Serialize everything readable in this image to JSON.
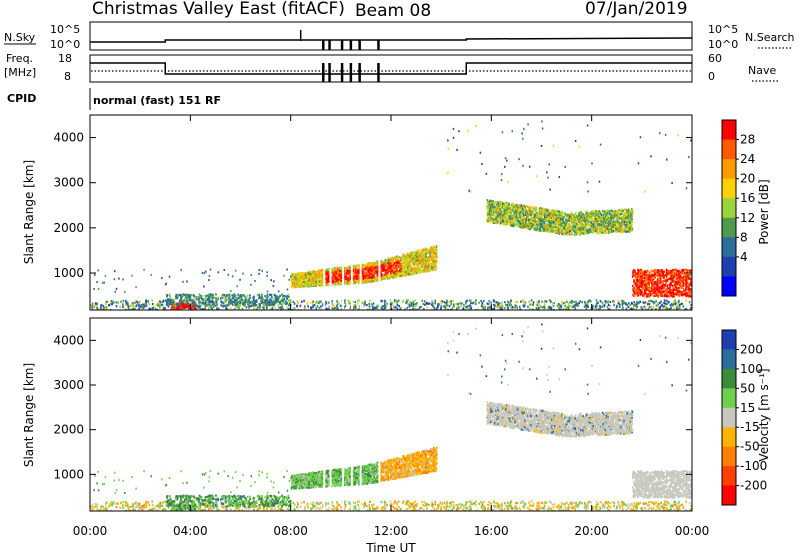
{
  "header": {
    "title": "Christmas Valley East (fitACF)",
    "beam": "Beam 08",
    "date": "07/Jan/2019"
  },
  "top_panels": {
    "nsky_label": "N.Sky",
    "nsearch_label": "N.Search",
    "nsky_ticks": [
      "10^5",
      "10^0"
    ],
    "nsearch_ticks": [
      "10^5",
      "10^0"
    ],
    "freq_label_1": "Freq.",
    "freq_label_2": "[MHz]",
    "freq_ticks": [
      "18",
      "8"
    ],
    "nave_label": "Nave",
    "nave_ticks": [
      "60",
      "0"
    ],
    "cpid_label": "CPID",
    "cpid_value": "normal (fast) 151 RF"
  },
  "power_colorbar": {
    "label": "Power [dB]",
    "ticks": [
      "28",
      "24",
      "20",
      "16",
      "12",
      "8",
      "4"
    ],
    "colors": [
      "#ff0000",
      "#ff5a00",
      "#ff9a00",
      "#ffd200",
      "#9bd43c",
      "#4e9a4e",
      "#2a6e9a",
      "#1f3fb0",
      "#0000ff"
    ]
  },
  "velocity_colorbar": {
    "label": "Velocity [m s⁻¹]",
    "ticks": [
      "200",
      "100",
      "50",
      "15",
      "-15",
      "-50",
      "-100",
      "-200"
    ],
    "colors": [
      "#1f3fb0",
      "#2a6e9a",
      "#3c8a3c",
      "#6ed04a",
      "#c8c8c0",
      "#ffb400",
      "#ff8000",
      "#ff4000",
      "#ff0000"
    ]
  },
  "axes": {
    "ylabel": "Slant Range [km]",
    "yticks": [
      "4000",
      "3000",
      "2000",
      "1000"
    ],
    "xlabel": "Time UT",
    "xticks": [
      "00:00",
      "04:00",
      "08:00",
      "12:00",
      "16:00",
      "20:00",
      "00:00"
    ]
  },
  "chart_data": [
    {
      "type": "heatmap",
      "panel": "power",
      "xlabel": "Time UT",
      "ylabel": "Slant Range [km]",
      "xlim": [
        0,
        24
      ],
      "ylim": [
        180,
        4500
      ],
      "colorbar_label": "Power [dB]",
      "colorbar_range": [
        0,
        30
      ],
      "scatter_regions": [
        {
          "t_start": 8.0,
          "t_end": 13.8,
          "range_center_km": 1000,
          "value_db": 22
        },
        {
          "t_start": 15.8,
          "t_end": 21.6,
          "range_center_km": 2100,
          "value_db": 16
        },
        {
          "t_start": 21.6,
          "t_end": 24.0,
          "range_center_km": 800,
          "value_db": 26
        },
        {
          "t_start": 0.0,
          "t_end": 24.0,
          "range_center_km": 300,
          "value_db": 10
        }
      ]
    },
    {
      "type": "heatmap",
      "panel": "velocity",
      "xlabel": "Time UT",
      "ylabel": "Slant Range [km]",
      "xlim": [
        0,
        24
      ],
      "ylim": [
        180,
        4500
      ],
      "colorbar_label": "Velocity [m s⁻¹]",
      "colorbar_range": [
        -200,
        200
      ],
      "scatter_regions": [
        {
          "t_start": 8.0,
          "t_end": 11.5,
          "range_center_km": 1000,
          "value_ms": 40
        },
        {
          "t_start": 11.5,
          "t_end": 14.0,
          "range_center_km": 1200,
          "value_ms": -40
        },
        {
          "t_start": 15.8,
          "t_end": 21.6,
          "range_center_km": 2100,
          "value_ms": 0
        },
        {
          "t_start": 21.6,
          "t_end": 24.0,
          "range_center_km": 800,
          "value_ms": 0
        },
        {
          "t_start": 0.0,
          "t_end": 24.0,
          "range_center_km": 300,
          "value_ms": -30
        }
      ]
    }
  ]
}
